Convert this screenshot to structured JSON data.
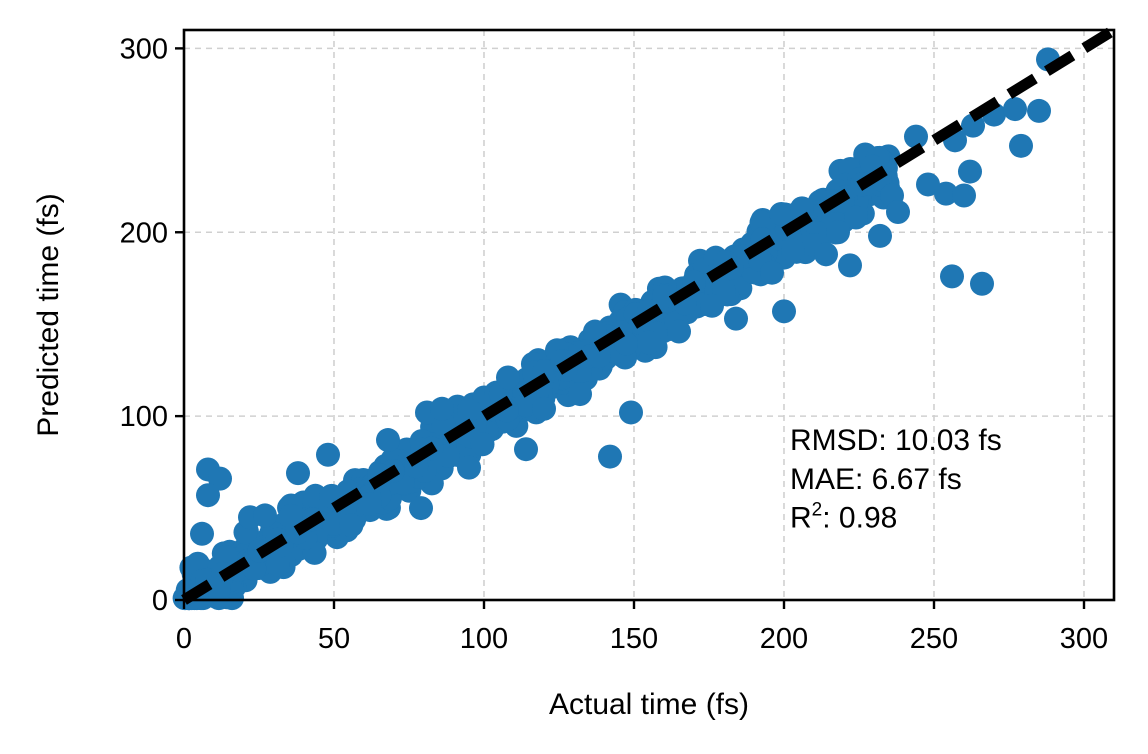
{
  "chart_data": {
    "type": "scatter",
    "xlabel": "Actual time (fs)",
    "ylabel": "Predicted time (fs)",
    "xlim": [
      0,
      310
    ],
    "ylim": [
      0,
      310
    ],
    "xticks": [
      0,
      50,
      100,
      150,
      200,
      250,
      300
    ],
    "yticks": [
      0,
      100,
      200,
      300
    ],
    "xtick_labels": [
      "0",
      "50",
      "100",
      "150",
      "200",
      "250",
      "300"
    ],
    "ytick_labels": [
      "0",
      "100",
      "200",
      "300"
    ],
    "grid": true,
    "reference_line": {
      "from": [
        0,
        0
      ],
      "to": [
        310,
        310
      ],
      "style": "dashed",
      "color": "#000000"
    },
    "marker_color": "#1f77b4",
    "annotation": {
      "rmsd": "RMSD: 10.03 fs",
      "mae": "MAE: 6.67 fs",
      "r2_prefix": "R",
      "r2_sup": "2",
      "r2_value": ": 0.98"
    },
    "outliers": [
      {
        "x": 8,
        "y": 71
      },
      {
        "x": 12,
        "y": 66
      },
      {
        "x": 8,
        "y": 57
      },
      {
        "x": 6,
        "y": 36
      },
      {
        "x": 22,
        "y": 45
      },
      {
        "x": 27,
        "y": 46
      },
      {
        "x": 38,
        "y": 69
      },
      {
        "x": 48,
        "y": 79
      },
      {
        "x": 68,
        "y": 87
      },
      {
        "x": 79,
        "y": 50
      },
      {
        "x": 81,
        "y": 102
      },
      {
        "x": 86,
        "y": 104
      },
      {
        "x": 95,
        "y": 103
      },
      {
        "x": 95,
        "y": 72
      },
      {
        "x": 108,
        "y": 121
      },
      {
        "x": 114,
        "y": 82
      },
      {
        "x": 126,
        "y": 130
      },
      {
        "x": 137,
        "y": 146
      },
      {
        "x": 142,
        "y": 78
      },
      {
        "x": 149,
        "y": 102
      },
      {
        "x": 160,
        "y": 165
      },
      {
        "x": 170,
        "y": 173
      },
      {
        "x": 184,
        "y": 153
      },
      {
        "x": 200,
        "y": 157
      },
      {
        "x": 206,
        "y": 213
      },
      {
        "x": 216,
        "y": 217
      },
      {
        "x": 222,
        "y": 182
      },
      {
        "x": 226,
        "y": 226
      },
      {
        "x": 232,
        "y": 198
      },
      {
        "x": 236,
        "y": 220
      },
      {
        "x": 238,
        "y": 211
      },
      {
        "x": 244,
        "y": 252
      },
      {
        "x": 248,
        "y": 226
      },
      {
        "x": 254,
        "y": 221
      },
      {
        "x": 256,
        "y": 176
      },
      {
        "x": 257,
        "y": 250
      },
      {
        "x": 260,
        "y": 220
      },
      {
        "x": 262,
        "y": 233
      },
      {
        "x": 266,
        "y": 172
      },
      {
        "x": 263,
        "y": 258
      },
      {
        "x": 270,
        "y": 264
      },
      {
        "x": 277,
        "y": 267
      },
      {
        "x": 279,
        "y": 247
      },
      {
        "x": 285,
        "y": 266
      },
      {
        "x": 288,
        "y": 294
      },
      {
        "x": 180,
        "y": 168
      },
      {
        "x": 192,
        "y": 185
      },
      {
        "x": 210,
        "y": 193
      },
      {
        "x": 214,
        "y": 188
      },
      {
        "x": 65,
        "y": 68
      },
      {
        "x": 120,
        "y": 104
      },
      {
        "x": 132,
        "y": 112
      },
      {
        "x": 155,
        "y": 140
      },
      {
        "x": 165,
        "y": 146
      },
      {
        "x": 176,
        "y": 160
      },
      {
        "x": 196,
        "y": 178
      },
      {
        "x": 203,
        "y": 190
      },
      {
        "x": 218,
        "y": 200
      },
      {
        "x": 224,
        "y": 208
      }
    ],
    "dense_band": {
      "x_range": [
        0,
        235
      ],
      "spread": 9,
      "count": 650
    }
  }
}
